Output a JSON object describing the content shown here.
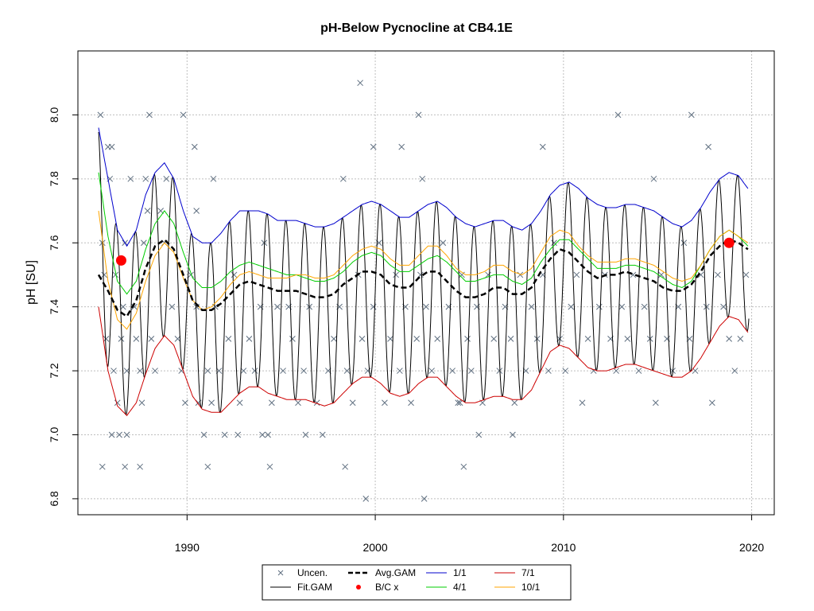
{
  "chart_data": {
    "type": "line",
    "title": "pH-Below Pycnocline at CB4.1E",
    "xlabel": "",
    "ylabel": "pH [SU]",
    "xlim": [
      1984.2,
      2021.2
    ],
    "ylim": [
      6.75,
      8.2
    ],
    "x_ticks": [
      1990,
      2000,
      2010,
      2020
    ],
    "y_ticks": [
      6.8,
      7.0,
      7.2,
      7.4,
      7.6,
      7.8,
      8.0
    ],
    "x_tick_labels": [
      "1990",
      "2000",
      "2010",
      "2020"
    ],
    "y_tick_labels": [
      "6.8",
      "7.0",
      "7.2",
      "7.4",
      "7.6",
      "7.8",
      "8.0"
    ],
    "grid": true,
    "legend_position": "bottom-center",
    "legend": [
      "Uncen.",
      "Fit.GAM",
      "Avg.GAM",
      "B/C x",
      "1/1",
      "4/1",
      "7/1",
      "10/1"
    ],
    "colors": {
      "uncen": "#5f6f80",
      "fit": "#000000",
      "avg": "#000000",
      "bc": "#ff0000",
      "s1": "#0000cd",
      "s4": "#00cd00",
      "s7": "#cd0000",
      "s10": "#ffa500",
      "grid": "#bebebe"
    },
    "series": [
      {
        "name": "1/1",
        "x": [
          1985.3,
          1985.8,
          1986.3,
          1986.8,
          1987.3,
          1987.8,
          1988.3,
          1988.8,
          1989.3,
          1989.8,
          1990.3,
          1990.8,
          1991.3,
          1991.8,
          1992.3,
          1992.8,
          1993.3,
          1993.8,
          1994.3,
          1994.8,
          1995.3,
          1995.8,
          1996.3,
          1996.8,
          1997.3,
          1997.8,
          1998.3,
          1998.8,
          1999.3,
          1999.8,
          2000.3,
          2000.8,
          2001.3,
          2001.8,
          2002.3,
          2002.8,
          2003.3,
          2003.8,
          2004.3,
          2004.8,
          2005.3,
          2005.8,
          2006.3,
          2006.8,
          2007.3,
          2007.8,
          2008.3,
          2008.8,
          2009.3,
          2009.8,
          2010.3,
          2010.8,
          2011.3,
          2011.8,
          2012.3,
          2012.8,
          2013.3,
          2013.8,
          2014.3,
          2014.8,
          2015.3,
          2015.8,
          2016.3,
          2016.8,
          2017.3,
          2017.8,
          2018.3,
          2018.8,
          2019.3,
          2019.8
        ],
        "values": [
          7.96,
          7.8,
          7.64,
          7.59,
          7.64,
          7.75,
          7.82,
          7.85,
          7.8,
          7.7,
          7.62,
          7.6,
          7.6,
          7.63,
          7.67,
          7.7,
          7.7,
          7.7,
          7.69,
          7.67,
          7.67,
          7.67,
          7.66,
          7.65,
          7.65,
          7.66,
          7.68,
          7.7,
          7.72,
          7.73,
          7.72,
          7.7,
          7.68,
          7.68,
          7.7,
          7.72,
          7.73,
          7.71,
          7.68,
          7.66,
          7.65,
          7.66,
          7.67,
          7.67,
          7.65,
          7.64,
          7.66,
          7.7,
          7.75,
          7.78,
          7.79,
          7.77,
          7.74,
          7.72,
          7.71,
          7.71,
          7.72,
          7.72,
          7.71,
          7.7,
          7.68,
          7.66,
          7.65,
          7.67,
          7.71,
          7.76,
          7.8,
          7.82,
          7.81,
          7.77
        ]
      },
      {
        "name": "4/1",
        "x": [
          1985.3,
          1985.8,
          1986.3,
          1986.8,
          1987.3,
          1987.8,
          1988.3,
          1988.8,
          1989.3,
          1989.8,
          1990.3,
          1990.8,
          1991.3,
          1991.8,
          1992.3,
          1992.8,
          1993.3,
          1993.8,
          1994.3,
          1994.8,
          1995.3,
          1995.8,
          1996.3,
          1996.8,
          1997.3,
          1997.8,
          1998.3,
          1998.8,
          1999.3,
          1999.8,
          2000.3,
          2000.8,
          2001.3,
          2001.8,
          2002.3,
          2002.8,
          2003.3,
          2003.8,
          2004.3,
          2004.8,
          2005.3,
          2005.8,
          2006.3,
          2006.8,
          2007.3,
          2007.8,
          2008.3,
          2008.8,
          2009.3,
          2009.8,
          2010.3,
          2010.8,
          2011.3,
          2011.8,
          2012.3,
          2012.8,
          2013.3,
          2013.8,
          2014.3,
          2014.8,
          2015.3,
          2015.8,
          2016.3,
          2016.8,
          2017.3,
          2017.8,
          2018.3,
          2018.8,
          2019.3,
          2019.8
        ],
        "values": [
          7.82,
          7.62,
          7.48,
          7.44,
          7.48,
          7.58,
          7.66,
          7.7,
          7.66,
          7.57,
          7.49,
          7.46,
          7.46,
          7.48,
          7.51,
          7.53,
          7.54,
          7.53,
          7.52,
          7.51,
          7.5,
          7.5,
          7.49,
          7.48,
          7.48,
          7.49,
          7.51,
          7.54,
          7.56,
          7.57,
          7.56,
          7.53,
          7.51,
          7.51,
          7.53,
          7.55,
          7.56,
          7.54,
          7.51,
          7.48,
          7.48,
          7.49,
          7.5,
          7.5,
          7.48,
          7.47,
          7.49,
          7.54,
          7.58,
          7.61,
          7.61,
          7.58,
          7.55,
          7.52,
          7.52,
          7.52,
          7.53,
          7.53,
          7.52,
          7.51,
          7.49,
          7.47,
          7.46,
          7.48,
          7.53,
          7.58,
          7.62,
          7.64,
          7.62,
          7.59
        ]
      },
      {
        "name": "7/1",
        "x": [
          1985.3,
          1985.8,
          1986.3,
          1986.8,
          1987.3,
          1987.8,
          1988.3,
          1988.8,
          1989.3,
          1989.8,
          1990.3,
          1990.8,
          1991.3,
          1991.8,
          1992.3,
          1992.8,
          1993.3,
          1993.8,
          1994.3,
          1994.8,
          1995.3,
          1995.8,
          1996.3,
          1996.8,
          1997.3,
          1997.8,
          1998.3,
          1998.8,
          1999.3,
          1999.8,
          2000.3,
          2000.8,
          2001.3,
          2001.8,
          2002.3,
          2002.8,
          2003.3,
          2003.8,
          2004.3,
          2004.8,
          2005.3,
          2005.8,
          2006.3,
          2006.8,
          2007.3,
          2007.8,
          2008.3,
          2008.8,
          2009.3,
          2009.8,
          2010.3,
          2010.8,
          2011.3,
          2011.8,
          2012.3,
          2012.8,
          2013.3,
          2013.8,
          2014.3,
          2014.8,
          2015.3,
          2015.8,
          2016.3,
          2016.8,
          2017.3,
          2017.8,
          2018.3,
          2018.8,
          2019.3,
          2019.8
        ],
        "values": [
          7.4,
          7.2,
          7.09,
          7.06,
          7.1,
          7.19,
          7.27,
          7.31,
          7.28,
          7.2,
          7.12,
          7.08,
          7.07,
          7.07,
          7.1,
          7.13,
          7.15,
          7.15,
          7.13,
          7.12,
          7.11,
          7.11,
          7.11,
          7.1,
          7.09,
          7.1,
          7.13,
          7.16,
          7.18,
          7.18,
          7.16,
          7.13,
          7.12,
          7.13,
          7.16,
          7.18,
          7.18,
          7.15,
          7.12,
          7.1,
          7.1,
          7.11,
          7.12,
          7.12,
          7.11,
          7.11,
          7.14,
          7.2,
          7.26,
          7.28,
          7.27,
          7.24,
          7.21,
          7.2,
          7.2,
          7.21,
          7.22,
          7.22,
          7.21,
          7.2,
          7.19,
          7.18,
          7.18,
          7.2,
          7.24,
          7.29,
          7.34,
          7.37,
          7.36,
          7.32
        ]
      },
      {
        "name": "10/1",
        "x": [
          1985.3,
          1985.8,
          1986.3,
          1986.8,
          1987.3,
          1987.8,
          1988.3,
          1988.8,
          1989.3,
          1989.8,
          1990.3,
          1990.8,
          1991.3,
          1991.8,
          1992.3,
          1992.8,
          1993.3,
          1993.8,
          1994.3,
          1994.8,
          1995.3,
          1995.8,
          1996.3,
          1996.8,
          1997.3,
          1997.8,
          1998.3,
          1998.8,
          1999.3,
          1999.8,
          2000.3,
          2000.8,
          2001.3,
          2001.8,
          2002.3,
          2002.8,
          2003.3,
          2003.8,
          2004.3,
          2004.8,
          2005.3,
          2005.8,
          2006.3,
          2006.8,
          2007.3,
          2007.8,
          2008.3,
          2008.8,
          2009.3,
          2009.8,
          2010.3,
          2010.8,
          2011.3,
          2011.8,
          2012.3,
          2012.8,
          2013.3,
          2013.8,
          2014.3,
          2014.8,
          2015.3,
          2015.8,
          2016.3,
          2016.8,
          2017.3,
          2017.8,
          2018.3,
          2018.8,
          2019.3,
          2019.8
        ],
        "values": [
          7.7,
          7.48,
          7.36,
          7.33,
          7.38,
          7.48,
          7.56,
          7.6,
          7.57,
          7.49,
          7.42,
          7.39,
          7.4,
          7.43,
          7.47,
          7.5,
          7.51,
          7.5,
          7.49,
          7.49,
          7.49,
          7.5,
          7.5,
          7.49,
          7.49,
          7.5,
          7.53,
          7.56,
          7.58,
          7.59,
          7.58,
          7.55,
          7.53,
          7.53,
          7.56,
          7.59,
          7.59,
          7.56,
          7.52,
          7.5,
          7.5,
          7.51,
          7.53,
          7.53,
          7.51,
          7.5,
          7.52,
          7.57,
          7.62,
          7.64,
          7.63,
          7.59,
          7.56,
          7.54,
          7.54,
          7.54,
          7.55,
          7.55,
          7.54,
          7.53,
          7.51,
          7.49,
          7.48,
          7.49,
          7.53,
          7.58,
          7.62,
          7.64,
          7.62,
          7.6
        ]
      },
      {
        "name": "Avg.GAM",
        "x": [
          1985.3,
          1985.8,
          1986.3,
          1986.8,
          1987.3,
          1987.8,
          1988.3,
          1988.8,
          1989.3,
          1989.8,
          1990.3,
          1990.8,
          1991.3,
          1991.8,
          1992.3,
          1992.8,
          1993.3,
          1993.8,
          1994.3,
          1994.8,
          1995.3,
          1995.8,
          1996.3,
          1996.8,
          1997.3,
          1997.8,
          1998.3,
          1998.8,
          1999.3,
          1999.8,
          2000.3,
          2000.8,
          2001.3,
          2001.8,
          2002.3,
          2002.8,
          2003.3,
          2003.8,
          2004.3,
          2004.8,
          2005.3,
          2005.8,
          2006.3,
          2006.8,
          2007.3,
          2007.8,
          2008.3,
          2008.8,
          2009.3,
          2009.8,
          2010.3,
          2010.8,
          2011.3,
          2011.8,
          2012.3,
          2012.8,
          2013.3,
          2013.8,
          2014.3,
          2014.8,
          2015.3,
          2015.8,
          2016.3,
          2016.8,
          2017.3,
          2017.8,
          2018.3,
          2018.8,
          2019.3,
          2019.8
        ],
        "values": [
          7.5,
          7.45,
          7.39,
          7.37,
          7.42,
          7.52,
          7.59,
          7.61,
          7.58,
          7.5,
          7.42,
          7.39,
          7.39,
          7.41,
          7.44,
          7.47,
          7.48,
          7.47,
          7.46,
          7.45,
          7.45,
          7.45,
          7.44,
          7.43,
          7.43,
          7.44,
          7.47,
          7.49,
          7.51,
          7.51,
          7.5,
          7.47,
          7.46,
          7.46,
          7.49,
          7.51,
          7.51,
          7.48,
          7.45,
          7.43,
          7.43,
          7.44,
          7.46,
          7.46,
          7.44,
          7.44,
          7.46,
          7.51,
          7.55,
          7.58,
          7.57,
          7.54,
          7.51,
          7.49,
          7.5,
          7.5,
          7.51,
          7.5,
          7.49,
          7.48,
          7.46,
          7.45,
          7.45,
          7.47,
          7.51,
          7.56,
          7.59,
          7.61,
          7.6,
          7.58
        ]
      }
    ],
    "fit_gam": {
      "name": "Fit.GAM",
      "note_amplitude_source": "seasonal fit oscillates between 1/1 and 7/1 envelopes",
      "period_years": 1
    },
    "bc_points": {
      "name": "B/C x",
      "x": [
        1986.5,
        2018.8
      ],
      "values": [
        7.545,
        7.6
      ]
    },
    "uncen_points": {
      "name": "Uncen.",
      "x": [
        1985.4,
        1985.5,
        1985.6,
        1985.7,
        1985.8,
        1985.9,
        1986.0,
        1986.1,
        1986.2,
        1986.3,
        1986.4,
        1986.5,
        1986.6,
        1986.7,
        1986.8,
        1987.0,
        1987.2,
        1987.3,
        1987.5,
        1987.6,
        1987.7,
        1987.9,
        1988.1,
        1988.3,
        1988.6,
        1988.8,
        1988.9,
        1989.2,
        1989.5,
        1989.7,
        1989.9,
        1990.2,
        1990.5,
        1990.6,
        1990.9,
        1991.1,
        1991.3,
        1991.5,
        1991.7,
        1992.0,
        1992.2,
        1992.5,
        1992.8,
        1993.0,
        1993.3,
        1993.6,
        1993.9,
        1994.1,
        1994.3,
        1994.5,
        1994.8,
        1995.1,
        1995.4,
        1995.6,
        1995.9,
        1996.2,
        1996.5,
        1996.9,
        1997.2,
        1997.5,
        1997.8,
        1998.1,
        1998.5,
        1998.8,
        1999.1,
        1999.3,
        1999.6,
        1999.9,
        2000.2,
        2000.5,
        2000.8,
        2001.1,
        2001.3,
        2001.6,
        2001.9,
        2002.2,
        2002.4,
        2002.7,
        2003.0,
        2003.3,
        2003.6,
        2003.9,
        2004.1,
        2004.4,
        2004.6,
        2004.9,
        2005.1,
        2005.4,
        2005.7,
        2006.0,
        2006.3,
        2006.6,
        2006.9,
        2007.2,
        2007.4,
        2007.7,
        2008.0,
        2008.3,
        2008.6,
        2008.9,
        2009.2,
        2009.5,
        2009.8,
        2010.1,
        2010.4,
        2010.7,
        2011.0,
        2011.3,
        2011.6,
        2011.9,
        2012.2,
        2012.5,
        2012.8,
        2013.1,
        2013.4,
        2013.7,
        2014.0,
        2014.3,
        2014.6,
        2014.9,
        2015.2,
        2015.5,
        2015.8,
        2016.1,
        2016.4,
        2016.7,
        2017.0,
        2017.3,
        2017.6,
        2017.9,
        2018.2,
        2018.5,
        2018.8,
        2019.1,
        2019.4,
        2019.7,
        1985.5,
        1986.0,
        1986.7,
        1987.5,
        1988.0,
        1989.8,
        1990.4,
        1991.1,
        1992.7,
        1994.0,
        1996.3,
        1998.4,
        1999.2,
        1999.9,
        2001.4,
        2002.3,
        2002.6,
        2004.7,
        2005.5,
        2007.3,
        2008.9,
        2012.9,
        2014.8,
        2016.8,
        2017.7,
        1986.8,
        1987.8,
        1990.5,
        1991.4,
        1994.4,
        1998.3,
        1999.5,
        2002.5,
        2004.5
      ],
      "values": [
        8.0,
        7.6,
        7.5,
        7.3,
        7.9,
        7.8,
        7.9,
        7.2,
        7.5,
        7.1,
        7.0,
        7.3,
        7.4,
        7.6,
        7.2,
        7.8,
        7.4,
        7.3,
        7.2,
        7.1,
        7.6,
        7.7,
        7.3,
        7.2,
        7.7,
        7.6,
        7.8,
        7.4,
        7.3,
        7.2,
        7.1,
        7.5,
        7.4,
        7.1,
        7.0,
        7.2,
        7.1,
        7.4,
        7.2,
        7.0,
        7.3,
        7.5,
        7.1,
        7.2,
        7.3,
        7.2,
        7.4,
        7.6,
        7.0,
        7.1,
        7.4,
        7.2,
        7.4,
        7.3,
        7.1,
        7.2,
        7.4,
        7.1,
        7.0,
        7.2,
        7.3,
        7.4,
        7.2,
        7.1,
        7.5,
        7.3,
        7.2,
        7.4,
        7.6,
        7.1,
        7.3,
        7.5,
        7.2,
        7.4,
        7.1,
        7.3,
        7.5,
        7.4,
        7.2,
        7.3,
        7.6,
        7.4,
        7.2,
        7.1,
        7.5,
        7.3,
        7.2,
        7.4,
        7.1,
        7.5,
        7.3,
        7.2,
        7.4,
        7.3,
        7.1,
        7.5,
        7.2,
        7.4,
        7.3,
        7.5,
        7.2,
        7.6,
        7.3,
        7.2,
        7.4,
        7.5,
        7.1,
        7.3,
        7.2,
        7.4,
        7.5,
        7.3,
        7.2,
        7.4,
        7.3,
        7.5,
        7.2,
        7.4,
        7.3,
        7.1,
        7.5,
        7.3,
        7.2,
        7.4,
        7.6,
        7.3,
        7.2,
        7.5,
        7.4,
        7.1,
        7.5,
        7.4,
        7.3,
        7.2,
        7.3,
        7.5,
        6.9,
        7.0,
        6.9,
        6.9,
        8.0,
        8.0,
        7.9,
        6.9,
        7.0,
        7.0,
        7.0,
        6.9,
        8.1,
        7.9,
        7.9,
        8.0,
        6.8,
        6.9,
        7.0,
        7.0,
        7.9,
        8.0,
        7.8,
        8.0,
        7.9,
        7.0,
        7.8,
        7.7,
        7.8,
        6.9,
        7.8,
        6.8,
        7.8,
        7.1
      ]
    }
  }
}
